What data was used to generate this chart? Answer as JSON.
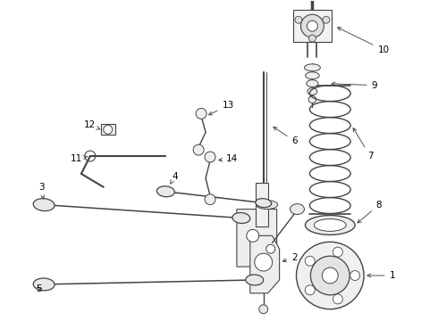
{
  "bg_color": "#ffffff",
  "line_color": "#444444",
  "label_color": "#000000",
  "figsize": [
    4.9,
    3.6
  ],
  "dpi": 100,
  "aspect_ratio": "auto"
}
